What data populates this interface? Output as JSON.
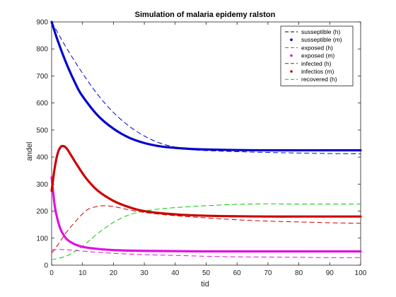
{
  "chart_data": {
    "type": "line",
    "title": "Simulation of malaria epidemy ralston",
    "xlabel": "tid",
    "ylabel": "andel",
    "xlim": [
      0,
      100
    ],
    "ylim": [
      0,
      900
    ],
    "xticks": [
      0,
      10,
      20,
      30,
      40,
      50,
      60,
      70,
      80,
      90,
      100
    ],
    "yticks": [
      0,
      100,
      200,
      300,
      400,
      500,
      600,
      700,
      800,
      900
    ],
    "grid": false,
    "legend_position": "top-right",
    "series": [
      {
        "name": "susseptible (h)",
        "style": "dashed",
        "color": "#0000cc",
        "x": [
          0,
          2,
          5,
          10,
          15,
          20,
          25,
          30,
          35,
          40,
          45,
          50,
          60,
          70,
          80,
          90,
          100
        ],
        "y": [
          900,
          860,
          800,
          710,
          630,
          565,
          515,
          478,
          452,
          437,
          428,
          424,
          420,
          417,
          415,
          413,
          412
        ]
      },
      {
        "name": "susseptible (m)",
        "style": "solid-thick",
        "color": "#0000cc",
        "x": [
          0,
          2,
          5,
          8,
          10,
          15,
          20,
          25,
          30,
          35,
          40,
          45,
          50,
          60,
          70,
          80,
          90,
          100
        ],
        "y": [
          900,
          830,
          740,
          665,
          625,
          553,
          505,
          472,
          452,
          440,
          434,
          430,
          428,
          426,
          425,
          425,
          425,
          425
        ]
      },
      {
        "name": "exposed (h)",
        "style": "dashed",
        "color": "#e010e0",
        "x": [
          0,
          2,
          5,
          10,
          20,
          30,
          40,
          50,
          60,
          70,
          80,
          90,
          100
        ],
        "y": [
          55,
          58,
          57,
          52,
          44,
          39,
          36,
          33,
          31,
          30,
          29,
          28,
          28
        ]
      },
      {
        "name": "exposed (m)",
        "style": "solid-thick",
        "color": "#e010e0",
        "x": [
          0,
          1,
          2,
          3,
          4,
          5,
          7,
          10,
          15,
          20,
          25,
          30,
          40,
          50,
          60,
          70,
          80,
          90,
          100
        ],
        "y": [
          325,
          220,
          165,
          130,
          110,
          95,
          80,
          68,
          60,
          56,
          54,
          53,
          52,
          51,
          51,
          51,
          51,
          51,
          51
        ]
      },
      {
        "name": "infected (h)",
        "style": "dashed",
        "color": "#cc0000",
        "x": [
          0,
          2,
          5,
          8,
          10,
          12,
          15,
          17,
          20,
          25,
          30,
          40,
          50,
          60,
          70,
          80,
          90,
          100
        ],
        "y": [
          45,
          75,
          125,
          165,
          190,
          208,
          218,
          220,
          217,
          205,
          195,
          183,
          175,
          168,
          163,
          160,
          157,
          155
        ]
      },
      {
        "name": "infectios (m)",
        "style": "solid-thick",
        "color": "#cc0000",
        "x": [
          0,
          1,
          2,
          3,
          4,
          5,
          6,
          8,
          10,
          12,
          15,
          20,
          25,
          30,
          40,
          50,
          60,
          70,
          80,
          90,
          100
        ],
        "y": [
          275,
          360,
          415,
          438,
          440,
          430,
          412,
          375,
          340,
          310,
          275,
          238,
          215,
          200,
          188,
          183,
          181,
          180,
          180,
          180,
          180
        ]
      },
      {
        "name": "recovered (h)",
        "style": "dashed",
        "color": "#00cc00",
        "x": [
          0,
          5,
          10,
          15,
          20,
          25,
          30,
          35,
          40,
          50,
          60,
          70,
          80,
          90,
          100
        ],
        "y": [
          20,
          35,
          70,
          118,
          158,
          186,
          200,
          208,
          213,
          220,
          225,
          227,
          226,
          226,
          226
        ]
      }
    ]
  }
}
